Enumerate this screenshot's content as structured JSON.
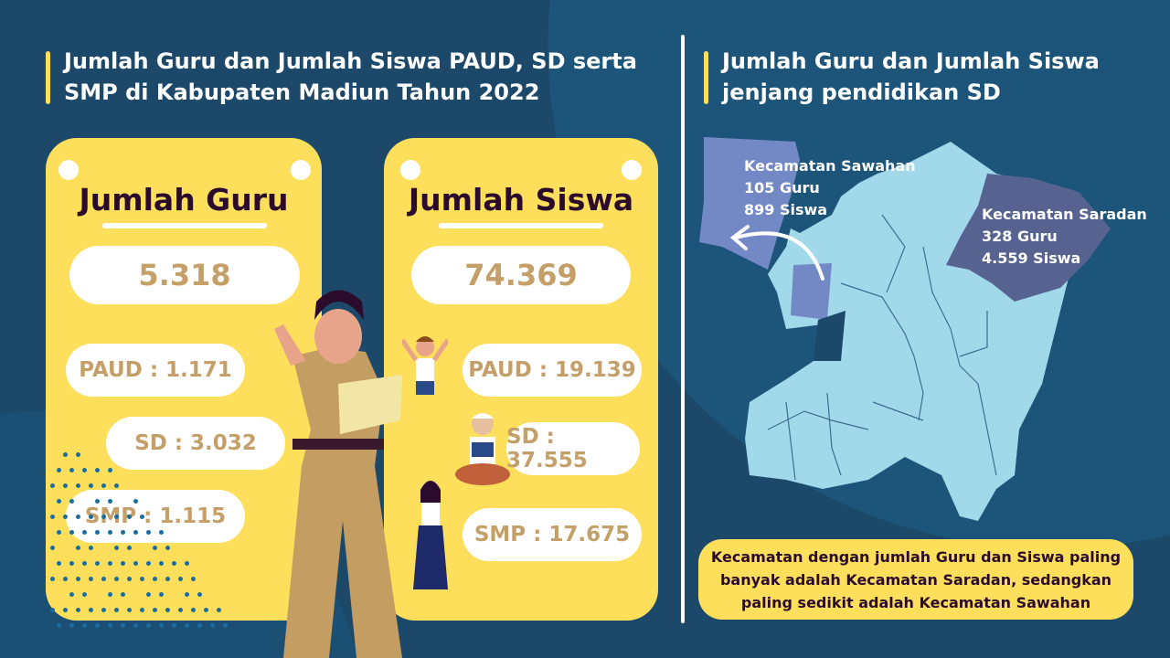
{
  "left": {
    "title": "Jumlah Guru dan Jumlah Siswa PAUD, SD serta SMP di Kabupaten Madiun Tahun 2022",
    "guru": {
      "heading": "Jumlah Guru",
      "total": "5.318",
      "paud": "PAUD : 1.171",
      "sd": "SD : 3.032",
      "smp": "SMP : 1.115"
    },
    "siswa": {
      "heading": "Jumlah Siswa",
      "total": "74.369",
      "paud": "PAUD : 19.139",
      "sd": "SD : 37.555",
      "smp": "SMP : 17.675"
    }
  },
  "right": {
    "title": "Jumlah Guru dan Jumlah Siswa jenjang pendidikan SD",
    "sawahan": {
      "name": "Kecamatan Sawahan",
      "guru": "105 Guru",
      "siswa": "899 Siswa"
    },
    "saradan": {
      "name": "Kecamatan Saradan",
      "guru": "328 Guru",
      "siswa": "4.559 Siswa"
    },
    "note": "Kecamatan dengan jumlah Guru dan Siswa paling banyak adalah Kecamatan Saradan, sedangkan paling sedikit adalah Kecamatan Sawahan"
  },
  "colors": {
    "background": "#1c4869",
    "card": "#fedf5c",
    "number": "#c4a068",
    "heading": "#2b0b2c",
    "map": "#a2d9ea",
    "sawahan": "#7389c6",
    "saradan": "#56628f"
  }
}
